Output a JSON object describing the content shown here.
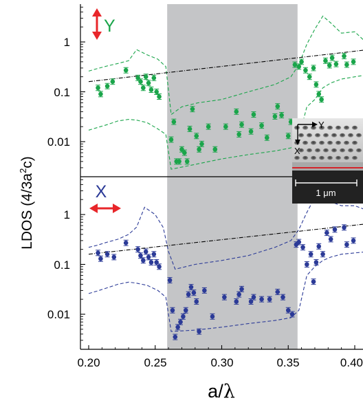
{
  "chart_data": [
    {
      "type": "scatter",
      "panel": "top",
      "polarization_label": "Y",
      "polarization_color": "#1aa54a",
      "arrow_color": "#e8262a",
      "xlim": [
        0.2,
        0.42
      ],
      "ylim_log": [
        0.0025,
        6
      ],
      "yscale": "log",
      "shaded_band": [
        0.259,
        0.357
      ],
      "band_color": "#c4c5c7",
      "trend_line": {
        "x": [
          0.2,
          0.42
        ],
        "y": [
          0.16,
          0.75
        ]
      },
      "points": {
        "x": [
          0.207,
          0.209,
          0.214,
          0.218,
          0.228,
          0.237,
          0.239,
          0.241,
          0.243,
          0.245,
          0.247,
          0.249,
          0.251,
          0.253,
          0.262,
          0.264,
          0.266,
          0.268,
          0.27,
          0.272,
          0.274,
          0.276,
          0.278,
          0.281,
          0.283,
          0.285,
          0.29,
          0.295,
          0.303,
          0.311,
          0.313,
          0.315,
          0.322,
          0.324,
          0.33,
          0.334,
          0.34,
          0.342,
          0.345,
          0.35,
          0.352,
          0.355,
          0.358,
          0.36,
          0.363,
          0.366,
          0.369,
          0.371,
          0.373,
          0.375,
          0.378,
          0.381,
          0.383,
          0.386,
          0.392,
          0.394,
          0.399
        ],
        "y": [
          0.12,
          0.09,
          0.13,
          0.16,
          0.27,
          0.19,
          0.16,
          0.12,
          0.2,
          0.15,
          0.11,
          0.19,
          0.1,
          0.08,
          0.011,
          0.025,
          0.004,
          0.004,
          0.007,
          0.006,
          0.004,
          0.018,
          0.045,
          0.013,
          0.007,
          0.009,
          0.02,
          0.007,
          0.02,
          0.04,
          0.014,
          0.022,
          0.016,
          0.035,
          0.021,
          0.012,
          0.032,
          0.051,
          0.034,
          0.013,
          0.025,
          0.35,
          0.32,
          0.4,
          0.27,
          0.2,
          0.3,
          0.14,
          0.09,
          0.07,
          0.42,
          0.34,
          0.48,
          0.36,
          0.52,
          0.35,
          0.4
        ]
      },
      "envelope_upper": {
        "x": [
          0.2,
          0.206,
          0.214,
          0.222,
          0.23,
          0.236,
          0.244,
          0.252,
          0.258,
          0.262,
          0.27,
          0.282,
          0.3,
          0.32,
          0.34,
          0.352,
          0.358,
          0.364,
          0.37,
          0.376,
          0.382,
          0.39,
          0.4,
          0.41,
          0.42
        ],
        "y": [
          0.26,
          0.29,
          0.33,
          0.37,
          0.42,
          0.7,
          0.55,
          0.45,
          0.32,
          0.035,
          0.05,
          0.06,
          0.07,
          0.1,
          0.14,
          0.2,
          0.35,
          0.9,
          1.8,
          3.3,
          2.4,
          1.5,
          1.6,
          0.9,
          0.7
        ]
      },
      "envelope_lower": {
        "x": [
          0.2,
          0.206,
          0.214,
          0.222,
          0.23,
          0.236,
          0.244,
          0.252,
          0.258,
          0.262,
          0.28,
          0.3,
          0.32,
          0.34,
          0.352,
          0.358,
          0.364,
          0.37,
          0.376,
          0.382,
          0.39,
          0.4,
          0.41,
          0.42
        ],
        "y": [
          0.017,
          0.019,
          0.022,
          0.026,
          0.028,
          0.027,
          0.024,
          0.018,
          0.014,
          0.0028,
          0.0035,
          0.0045,
          0.0055,
          0.0065,
          0.0075,
          0.012,
          0.05,
          0.07,
          0.12,
          0.15,
          0.18,
          0.2,
          0.22,
          0.24
        ]
      }
    },
    {
      "type": "scatter",
      "panel": "bottom",
      "polarization_label": "X",
      "polarization_color": "#2b3a97",
      "arrow_color": "#e8262a",
      "xlim": [
        0.2,
        0.42
      ],
      "ylim_log": [
        0.0025,
        6
      ],
      "yscale": "log",
      "shaded_band": [
        0.259,
        0.357
      ],
      "band_color": "#c4c5c7",
      "trend_line": {
        "x": [
          0.2,
          0.42
        ],
        "y": [
          0.16,
          0.7
        ]
      },
      "points": {
        "x": [
          0.207,
          0.209,
          0.214,
          0.219,
          0.228,
          0.237,
          0.239,
          0.241,
          0.243,
          0.245,
          0.247,
          0.249,
          0.251,
          0.253,
          0.261,
          0.263,
          0.265,
          0.267,
          0.269,
          0.271,
          0.273,
          0.275,
          0.277,
          0.279,
          0.281,
          0.283,
          0.287,
          0.293,
          0.302,
          0.311,
          0.313,
          0.315,
          0.322,
          0.324,
          0.33,
          0.336,
          0.342,
          0.346,
          0.35,
          0.353,
          0.356,
          0.358,
          0.361,
          0.364,
          0.367,
          0.369,
          0.371,
          0.373,
          0.376,
          0.379,
          0.382,
          0.385,
          0.392,
          0.394,
          0.399
        ],
        "y": [
          0.17,
          0.13,
          0.16,
          0.14,
          0.27,
          0.2,
          0.15,
          0.12,
          0.18,
          0.14,
          0.11,
          0.16,
          0.11,
          0.09,
          0.048,
          0.012,
          0.0035,
          0.0055,
          0.007,
          0.009,
          0.012,
          0.025,
          0.035,
          0.027,
          0.018,
          0.0045,
          0.03,
          0.009,
          0.022,
          0.018,
          0.025,
          0.032,
          0.018,
          0.022,
          0.02,
          0.02,
          0.028,
          0.022,
          0.012,
          0.01,
          0.25,
          0.28,
          0.22,
          0.1,
          0.16,
          0.045,
          0.11,
          0.23,
          0.16,
          0.43,
          0.32,
          0.5,
          0.55,
          0.25,
          0.3
        ]
      },
      "envelope_upper": {
        "x": [
          0.2,
          0.206,
          0.214,
          0.222,
          0.23,
          0.236,
          0.242,
          0.25,
          0.256,
          0.26,
          0.265,
          0.28,
          0.3,
          0.32,
          0.34,
          0.352,
          0.358,
          0.364,
          0.37,
          0.376,
          0.382,
          0.39,
          0.4,
          0.41,
          0.42
        ],
        "y": [
          0.22,
          0.24,
          0.28,
          0.32,
          0.4,
          0.56,
          1.4,
          1.0,
          0.55,
          0.18,
          0.08,
          0.1,
          0.12,
          0.15,
          0.22,
          0.3,
          0.5,
          1.1,
          2.2,
          2.8,
          1.8,
          1.5,
          1.5,
          1.2,
          1.0
        ]
      },
      "envelope_lower": {
        "x": [
          0.2,
          0.206,
          0.214,
          0.222,
          0.23,
          0.236,
          0.244,
          0.252,
          0.258,
          0.262,
          0.28,
          0.3,
          0.32,
          0.34,
          0.352,
          0.358,
          0.364,
          0.37,
          0.376,
          0.382,
          0.39,
          0.4,
          0.41,
          0.42
        ],
        "y": [
          0.026,
          0.029,
          0.034,
          0.04,
          0.044,
          0.042,
          0.038,
          0.03,
          0.022,
          0.0045,
          0.0048,
          0.0055,
          0.0065,
          0.0075,
          0.0085,
          0.012,
          0.06,
          0.09,
          0.12,
          0.14,
          0.16,
          0.17,
          0.18,
          0.19
        ]
      }
    }
  ],
  "axes": {
    "ylabel": "LDOS (4/3a",
    "ylabel_sup": "2",
    "ylabel_tail": "c)",
    "xlabel_a": "a/",
    "xlabel_lambda": "λ",
    "xticks": [
      "0.20",
      "0.25",
      "0.30",
      "0.35",
      "0.40"
    ],
    "yticks": [
      "1",
      "0.1",
      "0.01"
    ]
  },
  "inset": {
    "scale_label": "1 μm",
    "axis_y_label": "Y",
    "axis_x_label": "X"
  }
}
